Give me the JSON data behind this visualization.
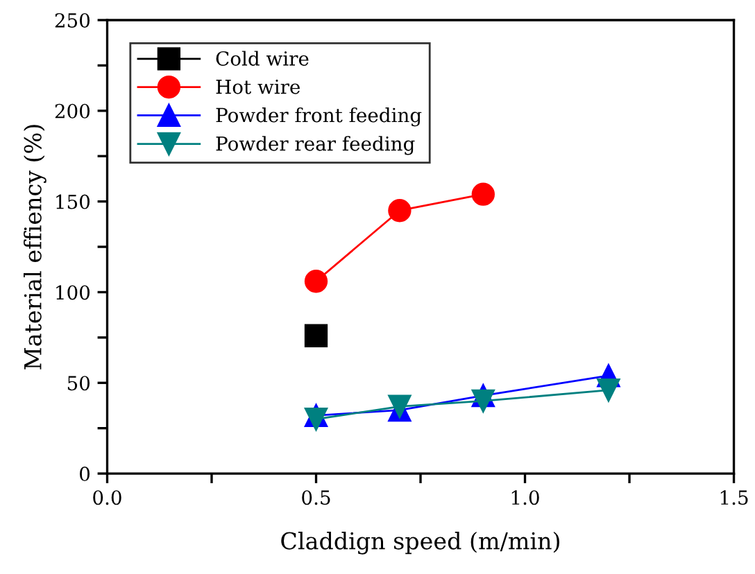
{
  "chart_data": {
    "type": "line",
    "xlabel": "Claddign speed (m/min)",
    "ylabel": "Material effiency (%)",
    "xlim": [
      0,
      1.5
    ],
    "xticks": [
      {
        "value": 0,
        "label": "0.0"
      },
      {
        "value": 0.25,
        "label": null
      },
      {
        "value": 0.5,
        "label": "0.5"
      },
      {
        "value": 0.75,
        "label": null
      },
      {
        "value": 1.0,
        "label": "1.0"
      },
      {
        "value": 1.25,
        "label": null
      },
      {
        "value": 1.5,
        "label": "1.5"
      }
    ],
    "ylim": [
      0,
      250
    ],
    "yticks": [
      0,
      {
        "value": 25,
        "label": null
      },
      50,
      {
        "value": 75,
        "label": null
      },
      100,
      {
        "value": 125,
        "label": null
      },
      150,
      {
        "value": 175,
        "label": null
      },
      200,
      {
        "value": 225,
        "label": null
      },
      250
    ],
    "legend": "top left",
    "grid": false,
    "series": [
      {
        "name": "Cold wire",
        "color": "#000000",
        "marker": "square",
        "x": [
          0.5
        ],
        "values": [
          76
        ]
      },
      {
        "name": "Hot wire",
        "color": "#ff0000",
        "marker": "circle",
        "x": [
          0.5,
          0.7,
          0.9
        ],
        "values": [
          106,
          145,
          154
        ]
      },
      {
        "name": "Powder front feeding",
        "color": "#0000ff",
        "marker": "triangle",
        "x": [
          0.5,
          0.7,
          0.9,
          1.2
        ],
        "values": [
          32,
          35,
          43,
          54
        ]
      },
      {
        "name": "Powder rear feeding",
        "color": "#008080",
        "marker": "triangle_down",
        "x": [
          0.5,
          0.7,
          0.9,
          1.2
        ],
        "values": [
          30,
          37,
          40,
          46
        ]
      }
    ]
  }
}
